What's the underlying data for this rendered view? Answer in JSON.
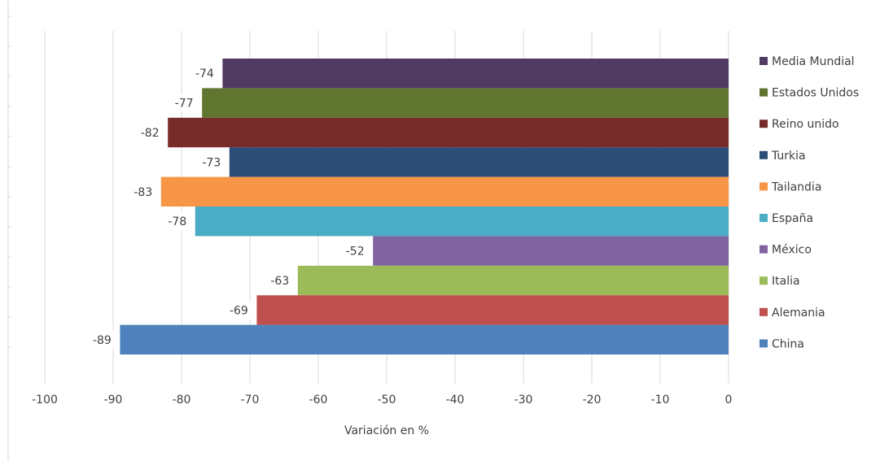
{
  "chart_data": {
    "type": "bar",
    "orientation": "horizontal",
    "x_label": "Variación en %",
    "xlim": [
      -100,
      0
    ],
    "xticks": [
      -100,
      -90,
      -80,
      -70,
      -60,
      -50,
      -40,
      -30,
      -20,
      -10,
      0
    ],
    "grid": true,
    "legend": "right",
    "series": [
      {
        "name": "Media Mundial",
        "color": "#503a62",
        "values": [
          -74
        ]
      },
      {
        "name": "Estados Unidos",
        "color": "#5f7530",
        "values": [
          -77
        ]
      },
      {
        "name": "Reino unido",
        "color": "#772c2a",
        "values": [
          -82
        ]
      },
      {
        "name": "Turkia",
        "color": "#2c4d75",
        "values": [
          -73
        ]
      },
      {
        "name": "Tailandia",
        "color": "#f79646",
        "values": [
          -83
        ]
      },
      {
        "name": "España",
        "color": "#4bacc6",
        "values": [
          -78
        ]
      },
      {
        "name": "México",
        "color": "#8064a2",
        "values": [
          -52
        ]
      },
      {
        "name": "Italia",
        "color": "#9bbb59",
        "values": [
          -63
        ]
      },
      {
        "name": "Alemania",
        "color": "#c0504d",
        "values": [
          -69
        ]
      },
      {
        "name": "China",
        "color": "#4f81bd",
        "values": [
          -89
        ]
      }
    ]
  }
}
